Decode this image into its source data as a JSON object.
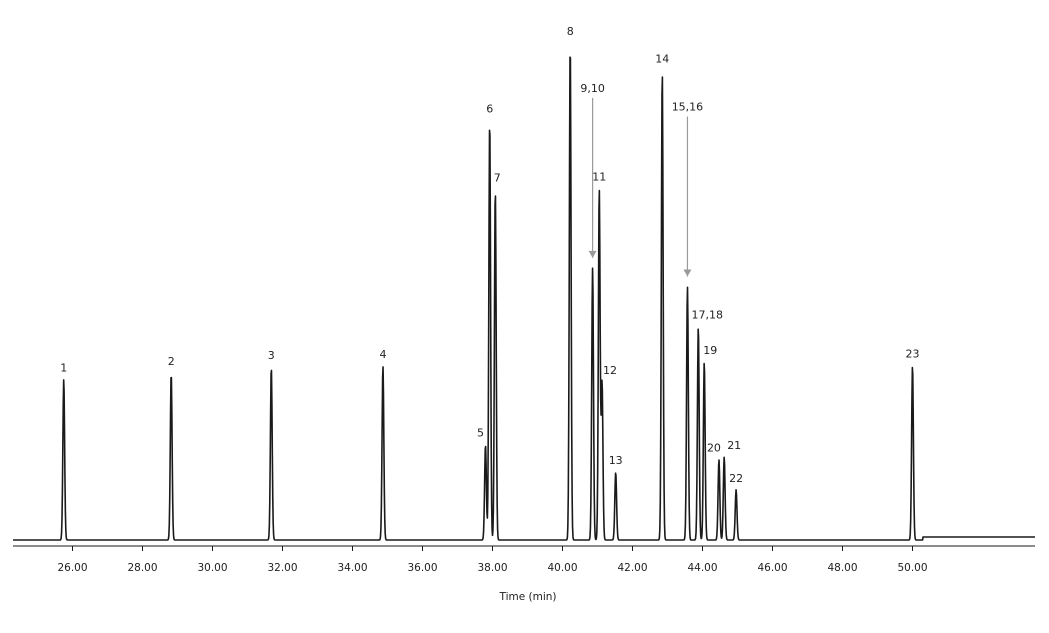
{
  "chart_data": {
    "type": "line",
    "title": "",
    "xlabel": "Time (min)",
    "ylabel": "",
    "xlim": [
      24.3,
      53.5
    ],
    "ylim": [
      0,
      100
    ],
    "x_ticks": [
      "26.00",
      "28.00",
      "30.00",
      "32.00",
      "34.00",
      "36.00",
      "38.00",
      "40.00",
      "42.00",
      "44.00",
      "46.00",
      "48.00",
      "50.00"
    ],
    "grid": false,
    "legend": "none",
    "line_color": "#1a1a1a",
    "arrow_color": "#9a9a9a",
    "peaks": [
      {
        "label": "1",
        "rt": 25.75,
        "height": 32.0
      },
      {
        "label": "2",
        "rt": 28.82,
        "height": 33.3
      },
      {
        "label": "3",
        "rt": 31.68,
        "height": 34.5
      },
      {
        "label": "4",
        "rt": 34.87,
        "height": 34.7
      },
      {
        "label": "5",
        "rt": 37.8,
        "height": 19.0
      },
      {
        "label": "6",
        "rt": 37.92,
        "height": 83.6
      },
      {
        "label": "7",
        "rt": 38.08,
        "height": 69.8
      },
      {
        "label": "8",
        "rt": 40.22,
        "height": 99.0
      },
      {
        "label": "9,10",
        "rt": 40.86,
        "height": 54.2,
        "arrow": true
      },
      {
        "label": "11",
        "rt": 41.05,
        "height": 70.0
      },
      {
        "label": "12",
        "rt": 41.13,
        "height": 31.5
      },
      {
        "label": "13",
        "rt": 41.52,
        "height": 13.5
      },
      {
        "label": "14",
        "rt": 42.85,
        "height": 93.5
      },
      {
        "label": "15,16",
        "rt": 43.57,
        "height": 50.5,
        "arrow": true
      },
      {
        "label": "17,18",
        "rt": 43.88,
        "height": 42.5
      },
      {
        "label": "19",
        "rt": 44.05,
        "height": 35.5
      },
      {
        "label": "20",
        "rt": 44.47,
        "height": 16.0
      },
      {
        "label": "21",
        "rt": 44.62,
        "height": 16.5
      },
      {
        "label": "22",
        "rt": 44.96,
        "height": 10.0
      },
      {
        "label": "23",
        "rt": 50.0,
        "height": 34.8
      }
    ]
  }
}
